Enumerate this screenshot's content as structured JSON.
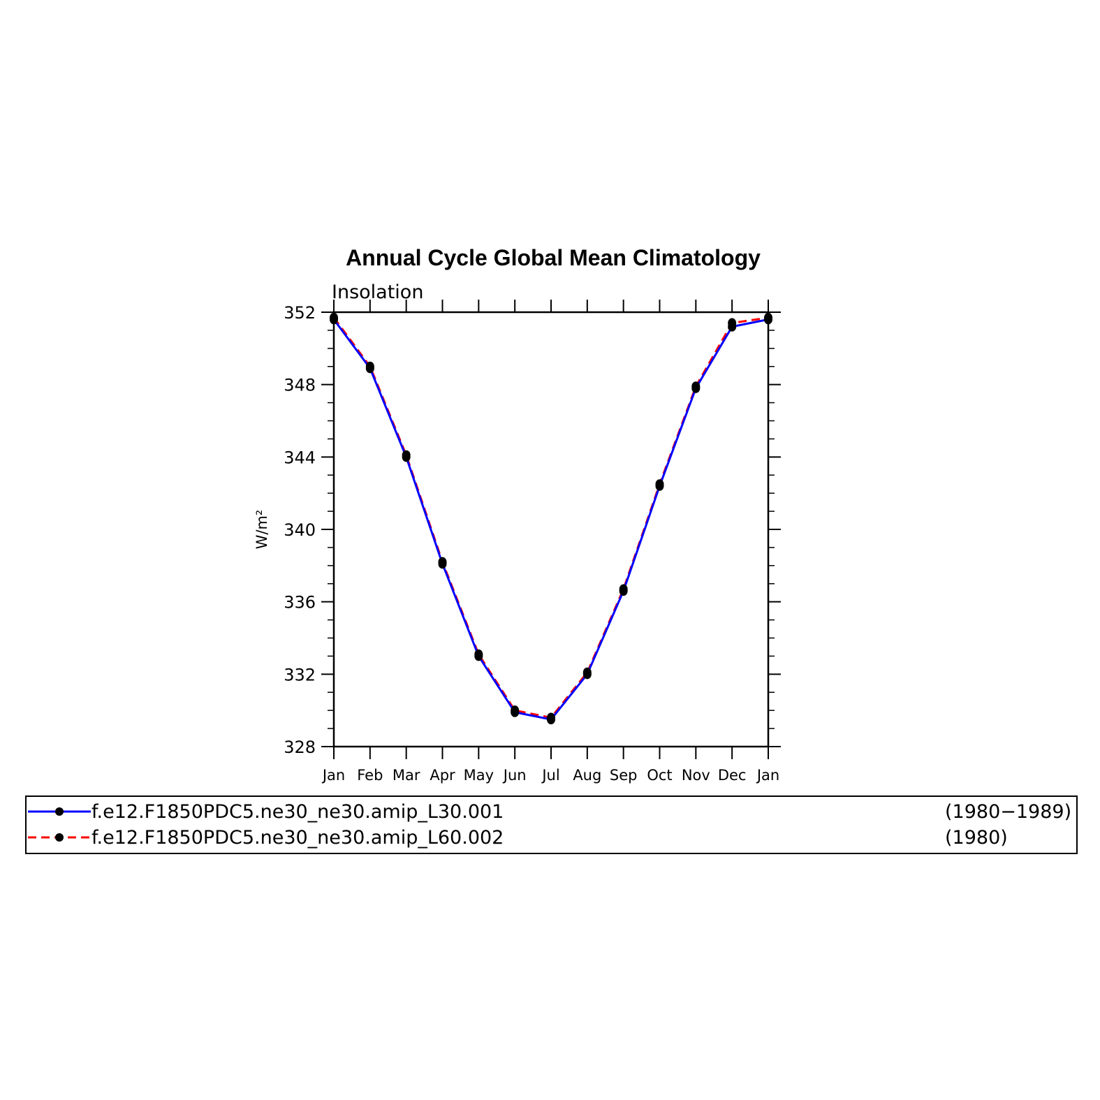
{
  "chart_data": {
    "type": "line",
    "title": "Annual Cycle Global Mean Climatology",
    "subtitle": "Insolation",
    "xlabel": "",
    "ylabel": "W/m²",
    "x_categories": [
      "Jan",
      "Feb",
      "Mar",
      "Apr",
      "May",
      "Jun",
      "Jul",
      "Aug",
      "Sep",
      "Oct",
      "Nov",
      "Dec",
      "Jan"
    ],
    "ylim": [
      328,
      352
    ],
    "yticks": [
      328,
      332,
      336,
      340,
      344,
      348,
      352
    ],
    "y_minor_step": 1,
    "grid": false,
    "legend_position": "bottom",
    "series": [
      {
        "name": "f.e12.F1850PDC5.ne30_ne30.amip_L30.001",
        "period": "(1980−1989)",
        "color": "#0000ff",
        "line_style": "solid",
        "marker": "filled-circle",
        "values": [
          351.6,
          348.9,
          344.0,
          338.1,
          333.0,
          329.9,
          329.5,
          332.0,
          336.6,
          342.4,
          347.8,
          351.2,
          351.6
        ]
      },
      {
        "name": "f.e12.F1850PDC5.ne30_ne30.amip_L60.002",
        "period": "(1980)",
        "color": "#ff0000",
        "line_style": "dashed",
        "marker": "filled-circle",
        "values": [
          351.7,
          349.0,
          344.1,
          338.2,
          333.1,
          330.0,
          329.6,
          332.1,
          336.7,
          342.5,
          347.9,
          351.4,
          351.7
        ]
      }
    ]
  }
}
